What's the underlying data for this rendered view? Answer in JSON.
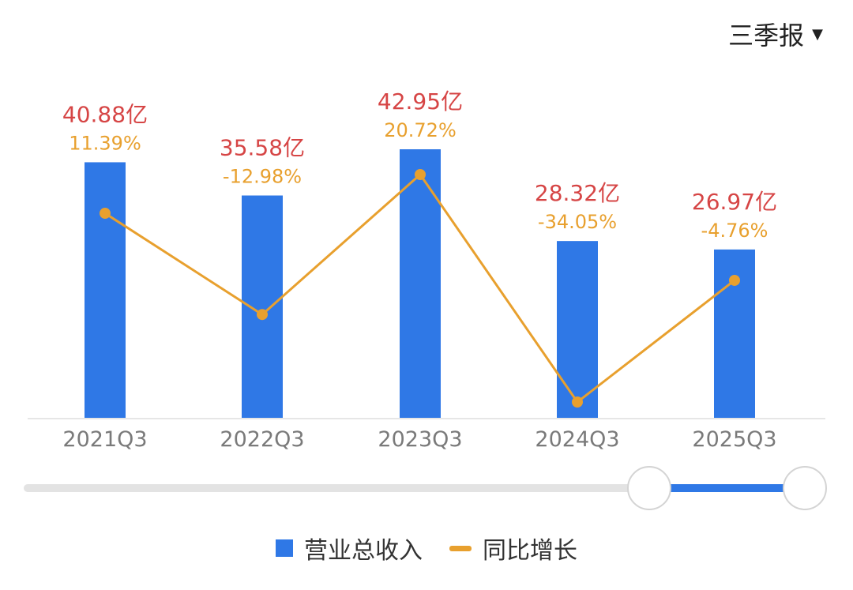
{
  "period_selector": {
    "label": "三季报",
    "caret_icon": "caret-down-icon"
  },
  "colors": {
    "bar": "#2f78e6",
    "line": "#e8a02e",
    "value_label": "#d64545",
    "pct_label": "#e8a02e",
    "axis_label": "#7a7a7a",
    "baseline": "#e6e6e6",
    "slider_track": "#e3e3e3",
    "slider_range": "#2f78e6"
  },
  "chart_data": {
    "type": "bar",
    "categories": [
      "2021Q3",
      "2022Q3",
      "2023Q3",
      "2024Q3",
      "2025Q3"
    ],
    "series": [
      {
        "name": "营业总收入",
        "kind": "bar",
        "values": [
          40.88,
          35.58,
          42.95,
          28.32,
          26.97
        ],
        "labels": [
          "40.88亿",
          "35.58亿",
          "42.95亿",
          "28.32亿",
          "26.97亿"
        ]
      },
      {
        "name": "同比增长",
        "kind": "line",
        "values": [
          11.39,
          -12.98,
          20.72,
          -34.05,
          -4.76
        ],
        "labels": [
          "11.39%",
          "-12.98%",
          "20.72%",
          "-34.05%",
          "-4.76%"
        ]
      }
    ],
    "grid": false,
    "legend_position": "bottom"
  },
  "slider": {
    "range_start": 0.8,
    "range_end": 1.0
  }
}
